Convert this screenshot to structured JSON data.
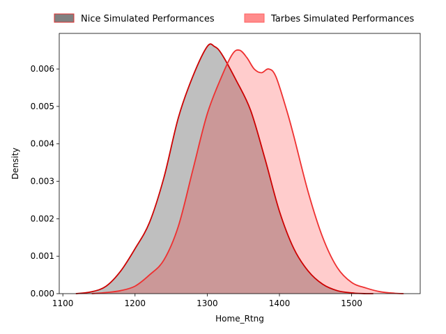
{
  "chart_data": {
    "type": "area",
    "xlabel": "Home_Rtng",
    "ylabel": "Density",
    "xlim": [
      1095,
      1595
    ],
    "ylim": [
      0,
      0.00695
    ],
    "xticks": [
      "1100",
      "1200",
      "1300",
      "1400",
      "1500"
    ],
    "yticks": [
      "0.000",
      "0.001",
      "0.002",
      "0.003",
      "0.004",
      "0.005",
      "0.006"
    ],
    "legend_position": "top-center",
    "series": [
      {
        "name": "Nice Simulated Performances",
        "fill_color": "#808080",
        "fill_opacity": 0.5,
        "line_color": "#cc0000",
        "legend_fill": "#808080",
        "legend_edge": "#e03030",
        "x": [
          1118,
          1140,
          1160,
          1180,
          1200,
          1220,
          1240,
          1260,
          1280,
          1300,
          1310,
          1320,
          1340,
          1360,
          1380,
          1400,
          1420,
          1440,
          1460,
          1480,
          1500,
          1520,
          1530
        ],
        "y": [
          0.0,
          5e-05,
          0.0002,
          0.0006,
          0.0012,
          0.0019,
          0.0031,
          0.0047,
          0.0058,
          0.0066,
          0.0066,
          0.0064,
          0.0057,
          0.0049,
          0.0036,
          0.0022,
          0.0012,
          0.0006,
          0.00025,
          8e-05,
          2e-05,
          0.0,
          0.0
        ]
      },
      {
        "name": "Tarbes Simulated Performances",
        "fill_color": "#ff0000",
        "fill_opacity": 0.2,
        "line_color": "#ee3030",
        "legend_fill": "#ff8c8c",
        "legend_edge": "#ff6060",
        "x": [
          1140,
          1160,
          1180,
          1200,
          1220,
          1240,
          1260,
          1280,
          1300,
          1320,
          1335,
          1345,
          1355,
          1365,
          1375,
          1385,
          1395,
          1410,
          1420,
          1440,
          1460,
          1480,
          1500,
          1520,
          1540,
          1560,
          1572
        ],
        "y": [
          0.0,
          3e-05,
          8e-05,
          0.0002,
          0.0005,
          0.0009,
          0.0018,
          0.0033,
          0.0048,
          0.0058,
          0.0064,
          0.0065,
          0.0063,
          0.006,
          0.0059,
          0.006,
          0.0058,
          0.0049,
          0.0042,
          0.0027,
          0.0015,
          0.0007,
          0.0003,
          0.00015,
          5e-05,
          1e-05,
          0.0
        ]
      }
    ]
  }
}
